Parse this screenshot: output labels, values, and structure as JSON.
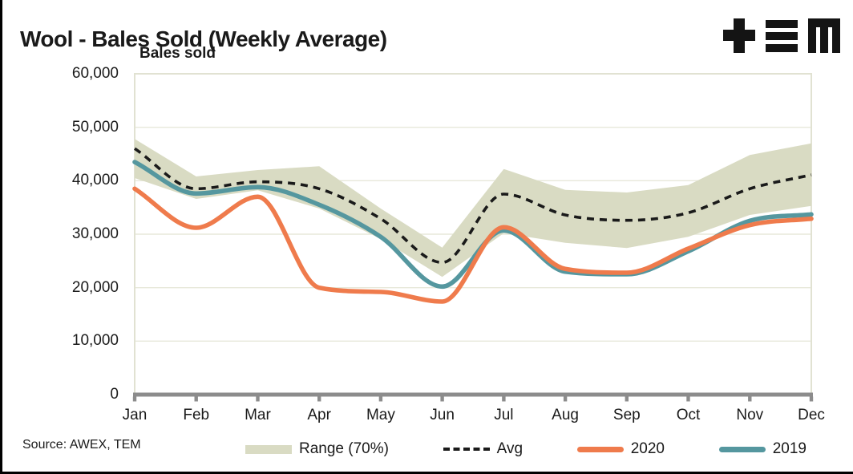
{
  "page": {
    "source_note": "Source: AWEX, TEM",
    "logo": "tem-logo"
  },
  "chart_data": {
    "type": "line",
    "title": "Wool - Bales Sold (Weekly Average)",
    "ylabel": "Bales sold",
    "xlabel": "",
    "categories": [
      "Jan",
      "Feb",
      "Mar",
      "Apr",
      "May",
      "Jun",
      "Jul",
      "Aug",
      "Sep",
      "Oct",
      "Nov",
      "Dec"
    ],
    "ylim": [
      0,
      60000
    ],
    "ytick_step": 10000,
    "ytick_labels": [
      "0",
      "10,000",
      "20,000",
      "30,000",
      "40,000",
      "50,000",
      "60,000"
    ],
    "grid": "horizontal",
    "legend_position": "bottom",
    "series": [
      {
        "name": "Range (70%)",
        "type": "band",
        "color": "#d9dbc3",
        "upper": [
          47800,
          40800,
          42000,
          42700,
          34800,
          27500,
          42200,
          38300,
          37800,
          39200,
          44800,
          47000
        ],
        "lower": [
          40500,
          36600,
          38200,
          34800,
          29100,
          22000,
          30200,
          28400,
          27400,
          29500,
          33600,
          35300
        ]
      },
      {
        "name": "Avg",
        "type": "dashed-line",
        "color": "#1a1a1a",
        "values": [
          46000,
          38500,
          39800,
          38500,
          32900,
          24700,
          37500,
          33600,
          32600,
          34000,
          38500,
          41100
        ]
      },
      {
        "name": "2019",
        "type": "line",
        "color": "#55979f",
        "values": [
          43500,
          37600,
          38800,
          35500,
          29500,
          20200,
          30700,
          23000,
          22500,
          26800,
          32500,
          33700
        ]
      },
      {
        "name": "2020",
        "type": "line",
        "color": "#ef7b4c",
        "values": [
          38500,
          31200,
          37000,
          20000,
          19200,
          17400,
          31300,
          23500,
          22800,
          27300,
          31700,
          32900
        ]
      }
    ],
    "legend_order": [
      "Range (70%)",
      "Avg",
      "2020",
      "2019"
    ],
    "style": {
      "plot_border_color": "#e1e2d2",
      "gridline_color": "#e7e8da",
      "axis_color": "#8c8c8c",
      "text_color": "#1a1a1a",
      "background": "#ffffff"
    }
  }
}
